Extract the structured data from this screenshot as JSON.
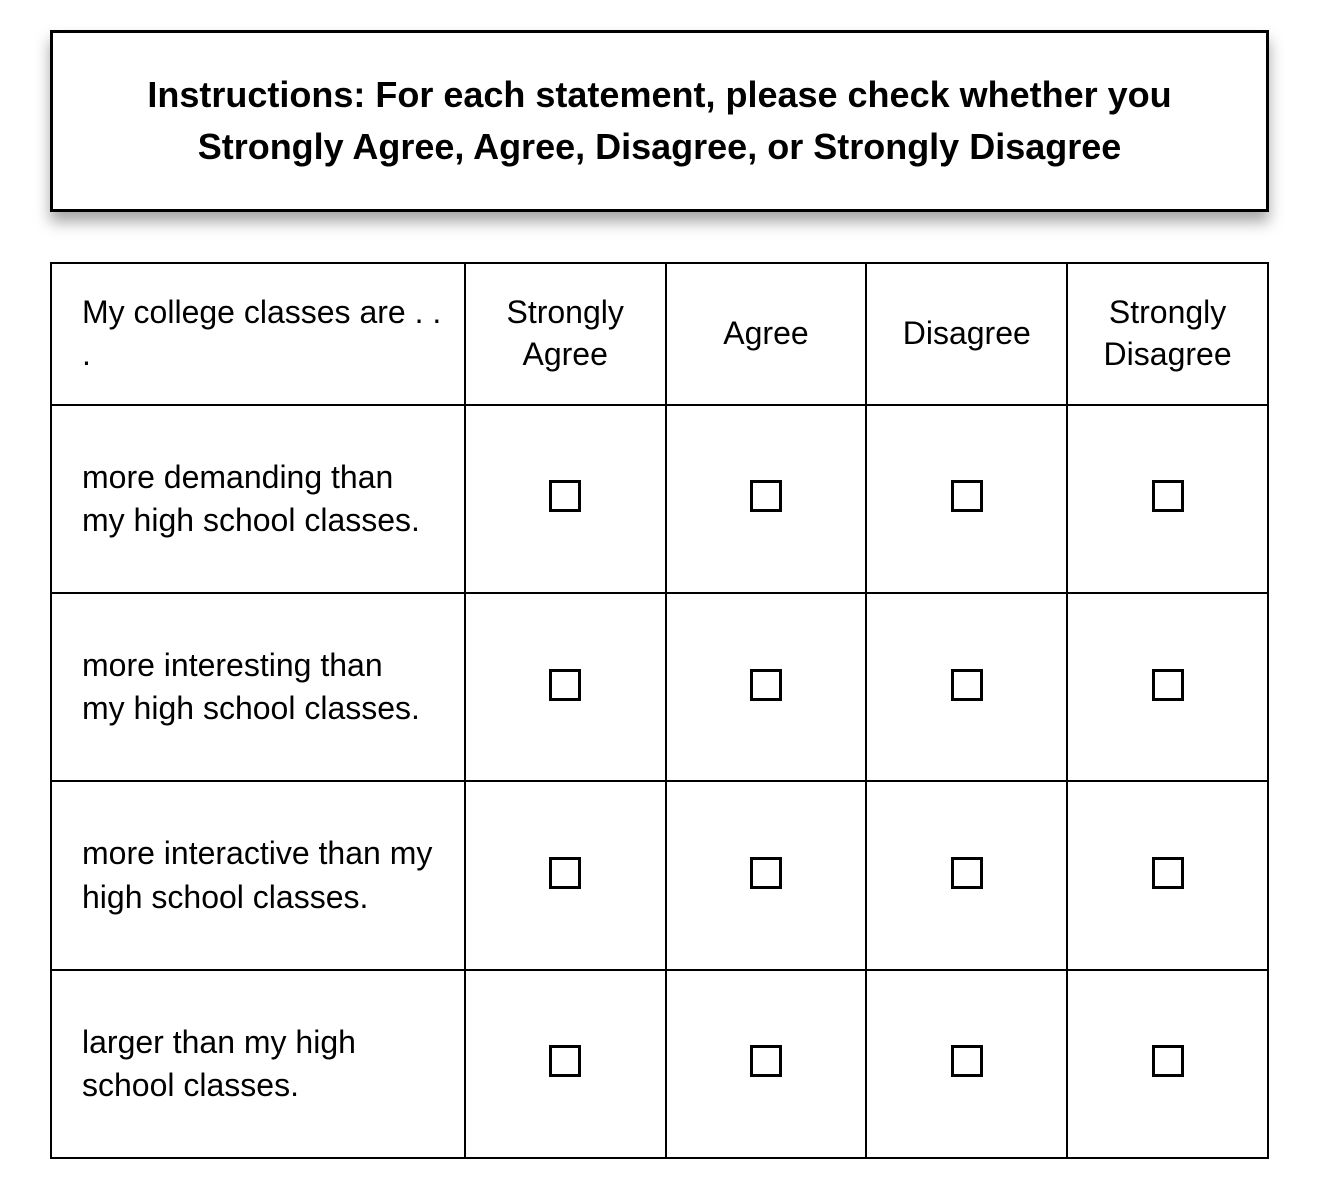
{
  "instructions": {
    "text": "Instructions: For each statement, please check whether you Strongly Agree, Agree, Disagree, or Strongly Disagree"
  },
  "table": {
    "type": "table",
    "border_color": "#000000",
    "background_color": "#ffffff",
    "font_color": "#000000",
    "header_fontsize": 32,
    "statement_fontsize": 32,
    "instructions_fontsize": 36,
    "checkbox_size": 32,
    "checkbox_border": 3,
    "columns": [
      {
        "key": "statement",
        "label": "My college classes are . . ."
      },
      {
        "key": "sa",
        "label": "Strongly Agree"
      },
      {
        "key": "a",
        "label": "Agree"
      },
      {
        "key": "d",
        "label": "Disagree"
      },
      {
        "key": "sd",
        "label": "Strongly Disagree"
      }
    ],
    "rows": [
      {
        "statement": "more demanding than my high school classes."
      },
      {
        "statement": "more interesting than my high school classes."
      },
      {
        "statement": "more interactive than my high school classes."
      },
      {
        "statement": "larger than my high school classes."
      }
    ]
  }
}
